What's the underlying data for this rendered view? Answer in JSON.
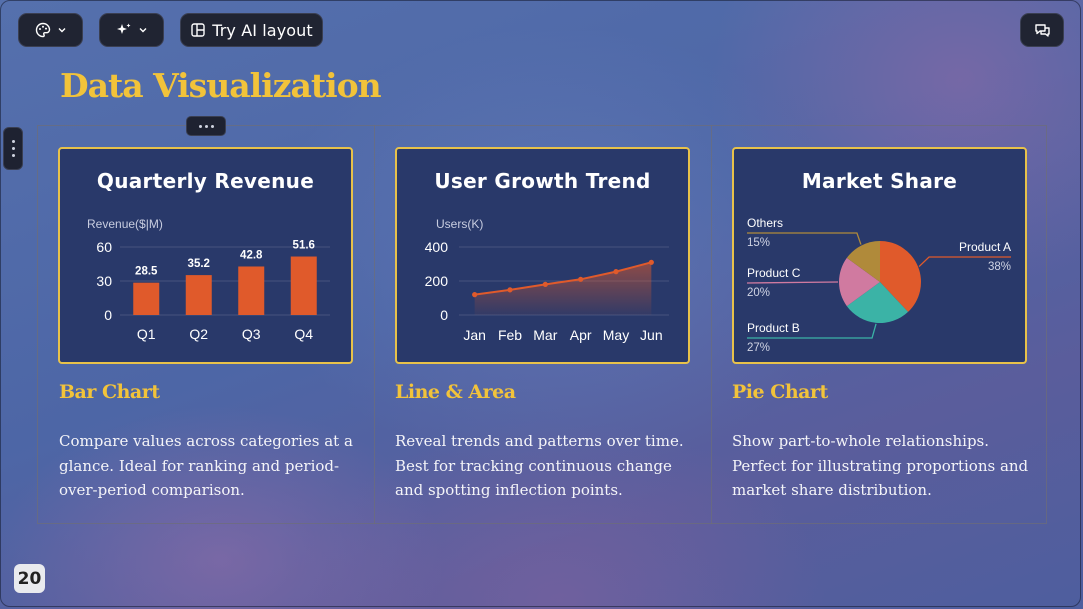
{
  "toolbar": {
    "theme_icon": "palette-icon",
    "ai_icon": "sparkles-icon",
    "layout_icon": "layout-icon",
    "try_ai_layout_label": "Try AI layout",
    "comment_icon": "comment-icon"
  },
  "slide": {
    "title": "Data Visualization",
    "page_number": "20",
    "accent_color": "#f2c33a",
    "card_bg": "#29396a",
    "card_border": "#e8c24a"
  },
  "columns": [
    {
      "heading": "Bar Chart",
      "description": "Compare values across categories at a glance. Ideal for ranking and period-over-period comparison."
    },
    {
      "heading": "Line & Area",
      "description": "Reveal trends and patterns over time. Best for tracking continuous change and spotting inflection points."
    },
    {
      "heading": "Pie Chart",
      "description": "Show part-to-whole relationships. Perfect for illustrating proportions and market share distribution."
    }
  ],
  "chart_data": [
    {
      "type": "bar",
      "title": "Quarterly Revenue",
      "ylabel": "Revenue($|M)",
      "categories": [
        "Q1",
        "Q2",
        "Q3",
        "Q4"
      ],
      "values": [
        28.5,
        35.2,
        42.8,
        51.6
      ],
      "y_ticks": [
        0,
        30,
        60
      ],
      "ylim": [
        0,
        60
      ],
      "data_labels": true,
      "grid": true,
      "color": "#e05a2b"
    },
    {
      "type": "area",
      "title": "User Growth Trend",
      "ylabel": "Users(K)",
      "categories": [
        "Jan",
        "Feb",
        "Mar",
        "Apr",
        "May",
        "Jun"
      ],
      "values": [
        120,
        148,
        180,
        210,
        255,
        310
      ],
      "y_ticks": [
        0,
        200,
        400
      ],
      "ylim": [
        0,
        400
      ],
      "grid": true,
      "color": "#e05a2b"
    },
    {
      "type": "pie",
      "title": "Market Share",
      "slices": [
        {
          "label": "Product A",
          "value": 38,
          "pct": "38%",
          "color": "#e05a2b"
        },
        {
          "label": "Product B",
          "value": 27,
          "pct": "27%",
          "color": "#3bb3a6"
        },
        {
          "label": "Product C",
          "value": 20,
          "pct": "20%",
          "color": "#d07aa0"
        },
        {
          "label": "Others",
          "value": 15,
          "pct": "15%",
          "color": "#b08a3a"
        }
      ]
    }
  ]
}
